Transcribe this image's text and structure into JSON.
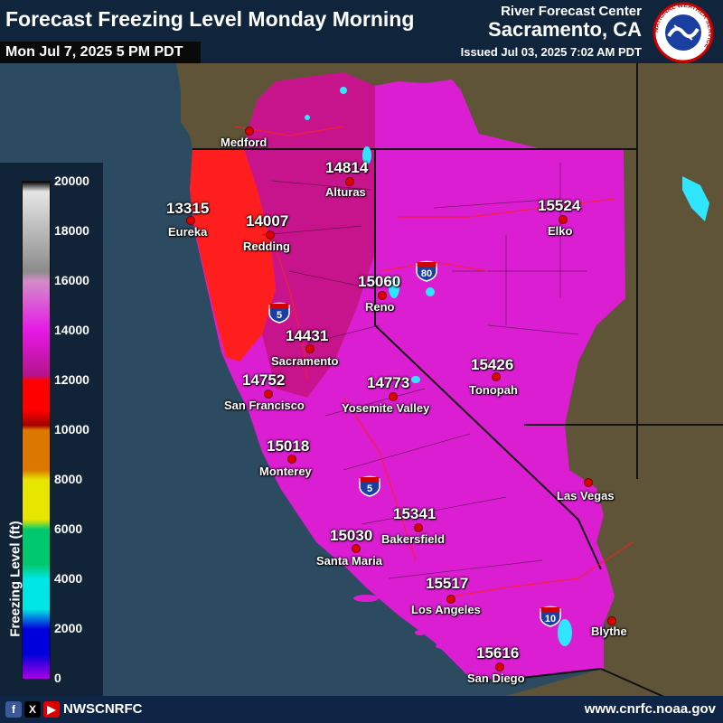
{
  "header": {
    "title": "Forecast Freezing Level Monday Morning",
    "valid_time": "Mon Jul 7, 2025 5 PM PDT",
    "agency": "River Forecast Center",
    "office": "Sacramento, CA",
    "issued": "Issued Jul 03, 2025 7:02 AM PDT",
    "logo_ring_text": "NATIONAL WEATHER SERVICE"
  },
  "legend": {
    "title": "Freezing Level (ft)",
    "ticks": [
      "20000",
      "18000",
      "16000",
      "14000",
      "12000",
      "10000",
      "8000",
      "6000",
      "4000",
      "2000",
      "0"
    ],
    "colors": {
      "top": "#e6e6e6",
      "pink_light": "#d28cc8",
      "magenta": "#e619e6",
      "dark_magenta": "#b4148c",
      "red": "#ff0000",
      "dark_red": "#a00000",
      "orange": "#dc7800",
      "yellow": "#e6e600",
      "green": "#00c86e",
      "cyan": "#00e6e6",
      "blue": "#0000dc",
      "purple": "#aa00e6"
    }
  },
  "map_colors": {
    "ocean": "#2c4a60",
    "land_outside": "#5f5437",
    "freezing_magenta": "#dc1ed2",
    "freezing_red": "#ff1e1e",
    "freezing_dark": "#c8148c"
  },
  "cities": [
    {
      "name": "Medford",
      "value": ""
    },
    {
      "name": "Alturas",
      "value": "14814"
    },
    {
      "name": "Eureka",
      "value": "13315"
    },
    {
      "name": "Redding",
      "value": "14007"
    },
    {
      "name": "Elko",
      "value": "15524"
    },
    {
      "name": "Reno",
      "value": "15060"
    },
    {
      "name": "Sacramento",
      "value": "14431"
    },
    {
      "name": "Tonopah",
      "value": "15426"
    },
    {
      "name": "San Francisco",
      "value": "14752"
    },
    {
      "name": "Yosemite Valley",
      "value": "14773"
    },
    {
      "name": "Monterey",
      "value": "15018"
    },
    {
      "name": "Las Vegas",
      "value": ""
    },
    {
      "name": "Bakersfield",
      "value": "15341"
    },
    {
      "name": "Santa Maria",
      "value": "15030"
    },
    {
      "name": "Los Angeles",
      "value": "15517"
    },
    {
      "name": "Blythe",
      "value": ""
    },
    {
      "name": "San Diego",
      "value": "15616"
    }
  ],
  "interstates": [
    "80",
    "5",
    "5",
    "10"
  ],
  "footer": {
    "social_icons": [
      "facebook-icon",
      "x-icon",
      "youtube-icon"
    ],
    "social_letters": [
      "f",
      "X",
      "▶"
    ],
    "handle": "NWSCNRFC",
    "website": "www.cnrfc.noaa.gov"
  }
}
